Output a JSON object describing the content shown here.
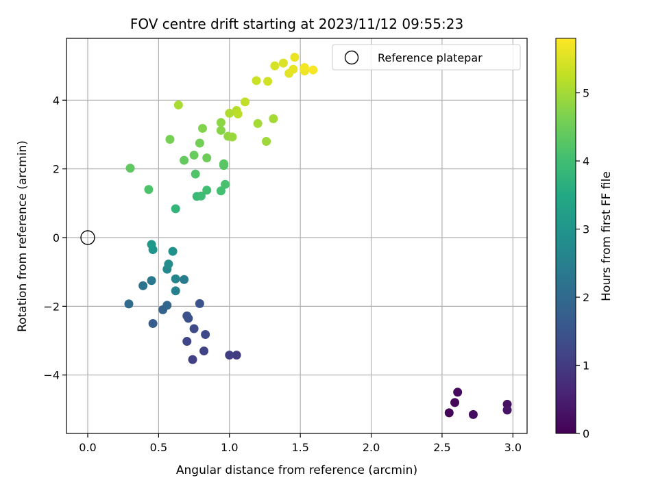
{
  "chart_data": {
    "type": "scatter",
    "title": "FOV centre drift starting at 2023/11/12 09:55:23",
    "xlabel": "Angular distance from reference (arcmin)",
    "ylabel": "Rotation from reference (arcmin)",
    "xlim": [
      -0.15,
      3.1
    ],
    "ylim": [
      -5.7,
      5.8
    ],
    "xticks": [
      0.0,
      0.5,
      1.0,
      1.5,
      2.0,
      2.5,
      3.0
    ],
    "xtick_labels": [
      "0.0",
      "0.5",
      "1.0",
      "1.5",
      "2.0",
      "2.5",
      "3.0"
    ],
    "yticks": [
      -4,
      -2,
      0,
      2,
      4
    ],
    "ytick_labels": [
      "−4",
      "−2",
      "0",
      "2",
      "4"
    ],
    "grid": true,
    "colormap": "viridis",
    "colorbar": {
      "label": "Hours from first FF file",
      "range": [
        0,
        5.8
      ],
      "ticks": [
        0,
        1,
        2,
        3,
        4,
        5
      ],
      "tick_labels": [
        "0",
        "1",
        "2",
        "3",
        "4",
        "5"
      ]
    },
    "legend": {
      "position": "top-right",
      "entries": [
        {
          "label": "Reference platepar",
          "marker": "open-circle"
        }
      ]
    },
    "reference_point": {
      "x": 0.0,
      "y": 0.0
    },
    "points": [
      {
        "x": 2.55,
        "y": -5.1,
        "h": 0.05
      },
      {
        "x": 2.59,
        "y": -4.8,
        "h": 0.1
      },
      {
        "x": 2.61,
        "y": -4.5,
        "h": 0.15
      },
      {
        "x": 2.72,
        "y": -5.15,
        "h": 0.2
      },
      {
        "x": 2.96,
        "y": -4.85,
        "h": 0.25
      },
      {
        "x": 2.96,
        "y": -5.02,
        "h": 0.3
      },
      {
        "x": 1.05,
        "y": -3.42,
        "h": 1.0
      },
      {
        "x": 1.0,
        "y": -3.42,
        "h": 1.05
      },
      {
        "x": 0.74,
        "y": -3.55,
        "h": 1.1
      },
      {
        "x": 0.82,
        "y": -3.3,
        "h": 1.15
      },
      {
        "x": 0.7,
        "y": -3.02,
        "h": 1.2
      },
      {
        "x": 0.83,
        "y": -2.82,
        "h": 1.25
      },
      {
        "x": 0.75,
        "y": -2.65,
        "h": 1.3
      },
      {
        "x": 0.71,
        "y": -2.35,
        "h": 1.4
      },
      {
        "x": 0.7,
        "y": -2.28,
        "h": 1.45
      },
      {
        "x": 0.79,
        "y": -1.92,
        "h": 1.5
      },
      {
        "x": 0.46,
        "y": -2.5,
        "h": 1.7
      },
      {
        "x": 0.53,
        "y": -2.1,
        "h": 1.8
      },
      {
        "x": 0.56,
        "y": -1.97,
        "h": 1.9
      },
      {
        "x": 0.29,
        "y": -1.93,
        "h": 2.0
      },
      {
        "x": 0.39,
        "y": -1.4,
        "h": 2.2
      },
      {
        "x": 0.45,
        "y": -1.25,
        "h": 2.3
      },
      {
        "x": 0.68,
        "y": -1.22,
        "h": 2.4
      },
      {
        "x": 0.62,
        "y": -1.55,
        "h": 2.5
      },
      {
        "x": 0.62,
        "y": -1.2,
        "h": 2.6
      },
      {
        "x": 0.56,
        "y": -0.92,
        "h": 2.7
      },
      {
        "x": 0.57,
        "y": -0.77,
        "h": 2.8
      },
      {
        "x": 0.6,
        "y": -0.4,
        "h": 2.9
      },
      {
        "x": 0.46,
        "y": -0.35,
        "h": 3.0
      },
      {
        "x": 0.45,
        "y": -0.2,
        "h": 3.1
      },
      {
        "x": 0.62,
        "y": 0.84,
        "h": 3.8
      },
      {
        "x": 0.77,
        "y": 1.2,
        "h": 3.9
      },
      {
        "x": 0.8,
        "y": 1.21,
        "h": 3.95
      },
      {
        "x": 0.84,
        "y": 1.38,
        "h": 4.0
      },
      {
        "x": 0.94,
        "y": 1.36,
        "h": 4.05
      },
      {
        "x": 0.97,
        "y": 1.55,
        "h": 4.1
      },
      {
        "x": 0.43,
        "y": 1.4,
        "h": 4.15
      },
      {
        "x": 0.76,
        "y": 1.85,
        "h": 4.2
      },
      {
        "x": 0.96,
        "y": 2.1,
        "h": 4.25
      },
      {
        "x": 0.96,
        "y": 2.15,
        "h": 4.3
      },
      {
        "x": 0.3,
        "y": 2.02,
        "h": 4.35
      },
      {
        "x": 0.68,
        "y": 2.25,
        "h": 4.4
      },
      {
        "x": 0.75,
        "y": 2.4,
        "h": 4.45
      },
      {
        "x": 0.84,
        "y": 2.32,
        "h": 4.5
      },
      {
        "x": 0.79,
        "y": 2.75,
        "h": 4.55
      },
      {
        "x": 0.58,
        "y": 2.86,
        "h": 4.6
      },
      {
        "x": 0.81,
        "y": 3.18,
        "h": 4.7
      },
      {
        "x": 0.94,
        "y": 3.12,
        "h": 4.75
      },
      {
        "x": 0.94,
        "y": 3.35,
        "h": 4.8
      },
      {
        "x": 0.99,
        "y": 2.95,
        "h": 4.85
      },
      {
        "x": 1.02,
        "y": 2.93,
        "h": 4.9
      },
      {
        "x": 1.26,
        "y": 2.8,
        "h": 4.95
      },
      {
        "x": 1.2,
        "y": 3.32,
        "h": 5.0
      },
      {
        "x": 1.31,
        "y": 3.46,
        "h": 5.0
      },
      {
        "x": 0.64,
        "y": 3.86,
        "h": 5.05
      },
      {
        "x": 1.0,
        "y": 3.62,
        "h": 5.1
      },
      {
        "x": 1.05,
        "y": 3.7,
        "h": 5.15
      },
      {
        "x": 1.06,
        "y": 3.6,
        "h": 5.2
      },
      {
        "x": 1.11,
        "y": 3.95,
        "h": 5.25
      },
      {
        "x": 1.19,
        "y": 4.57,
        "h": 5.35
      },
      {
        "x": 1.27,
        "y": 4.55,
        "h": 5.4
      },
      {
        "x": 1.32,
        "y": 5.0,
        "h": 5.45
      },
      {
        "x": 1.38,
        "y": 5.08,
        "h": 5.5
      },
      {
        "x": 1.42,
        "y": 4.78,
        "h": 5.55
      },
      {
        "x": 1.45,
        "y": 4.9,
        "h": 5.6
      },
      {
        "x": 1.46,
        "y": 5.25,
        "h": 5.62
      },
      {
        "x": 1.53,
        "y": 4.85,
        "h": 5.65
      },
      {
        "x": 1.53,
        "y": 4.95,
        "h": 5.7
      },
      {
        "x": 1.59,
        "y": 4.88,
        "h": 5.75
      }
    ]
  }
}
